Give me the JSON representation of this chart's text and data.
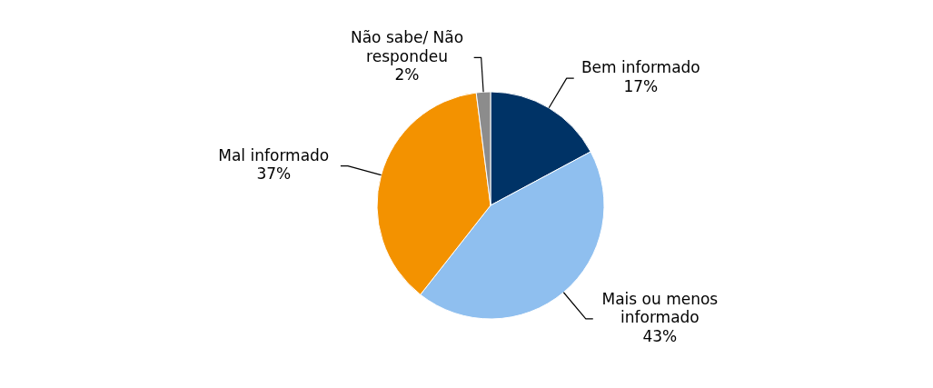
{
  "chart_data": {
    "type": "pie",
    "categories": [
      "Bem informado",
      "Mais ou menos informado",
      "Mal informado",
      "Não sabe/ Não respondeu"
    ],
    "values": [
      17,
      43,
      37,
      2
    ],
    "colors": [
      "#003366",
      "#8fbfef",
      "#f39200",
      "#8c8c8c"
    ],
    "value_labels": [
      "17%",
      "43%",
      "37%",
      "2%"
    ]
  }
}
